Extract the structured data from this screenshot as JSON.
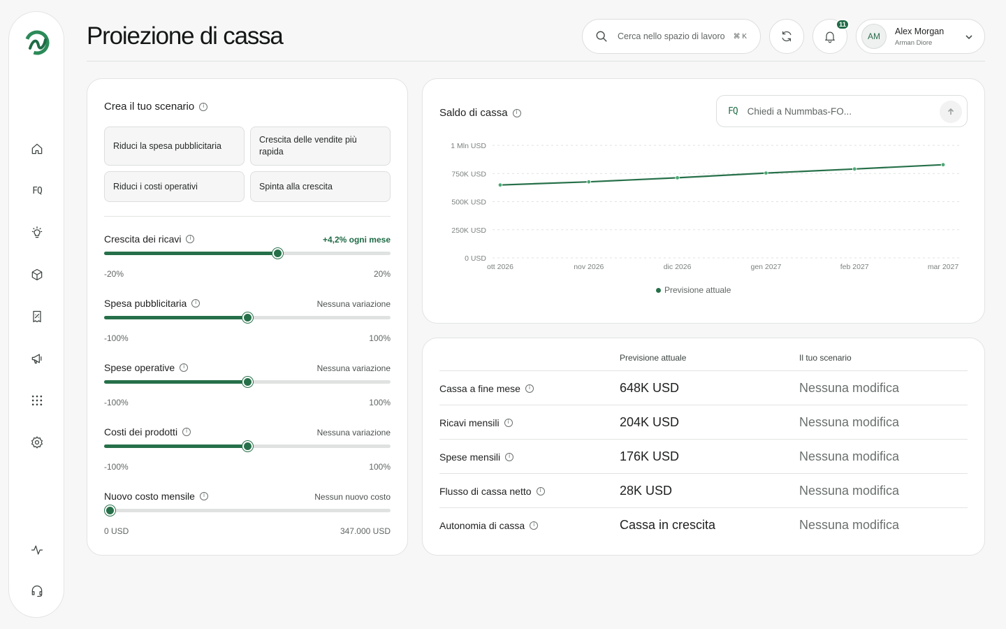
{
  "header": {
    "title": "Proiezione di cassa",
    "search_placeholder": "Cerca nello spazio di lavoro",
    "search_shortcut": "⌘ K",
    "notifications_count": "11",
    "user": {
      "initials": "AM",
      "name": "Alex Morgan",
      "org": "Arman Diore"
    }
  },
  "sidebar": {
    "items": [
      "home-icon",
      "fq-icon",
      "lightbulb-icon",
      "box-icon",
      "receipt-icon",
      "megaphone-icon",
      "apps-grid-icon",
      "settings-icon",
      "activity-icon",
      "headset-icon"
    ],
    "fq_glyph": "FQ"
  },
  "scenario": {
    "title": "Crea il tuo scenario",
    "presets": [
      "Riduci la spesa pubblicitaria",
      "Crescita delle vendite più rapida",
      "Riduci i costi operativi",
      "Spinta alla crescita"
    ],
    "sliders": [
      {
        "label": "Crescita dei ricavi",
        "value_text": "+4,2% ogni mese",
        "min_label": "-20%",
        "max_label": "20%",
        "position_pct": 60.5
      },
      {
        "label": "Spesa pubblicitaria",
        "value_text": "Nessuna variazione",
        "min_label": "-100%",
        "max_label": "100%",
        "position_pct": 50
      },
      {
        "label": "Spese operative",
        "value_text": "Nessuna variazione",
        "min_label": "-100%",
        "max_label": "100%",
        "position_pct": 50
      },
      {
        "label": "Costi dei prodotti",
        "value_text": "Nessuna variazione",
        "min_label": "-100%",
        "max_label": "100%",
        "position_pct": 50
      },
      {
        "label": "Nuovo costo mensile",
        "value_text": "Nessun nuovo costo",
        "min_label": "0 USD",
        "max_label": "347.000 USD",
        "position_pct": 2
      }
    ]
  },
  "cash_chart": {
    "title": "Saldo di cassa",
    "ask_placeholder": "Chiedi a Nummbas-FO...",
    "ask_icon_glyph": "FQ"
  },
  "chart_data": {
    "type": "line",
    "x": [
      "ott 2026",
      "nov 2026",
      "dic 2026",
      "gen 2027",
      "feb 2027",
      "mar 2027"
    ],
    "y_ticks": [
      "1 Mln USD",
      "750K USD",
      "500K USD",
      "250K USD",
      "0 USD"
    ],
    "y_tick_values": [
      1000000,
      750000,
      500000,
      250000,
      0
    ],
    "ylim": [
      0,
      1000000
    ],
    "series": [
      {
        "name": "Previsione attuale",
        "values": [
          648000,
          676000,
          712000,
          754000,
          790000,
          828000
        ],
        "color": "#267049"
      }
    ],
    "grid": true,
    "legend": "bottom"
  },
  "summary": {
    "col_current": "Previsione attuale",
    "col_scenario": "Il tuo scenario",
    "rows": [
      {
        "label": "Cassa a fine mese",
        "current": "648K USD",
        "scenario": "Nessuna modifica"
      },
      {
        "label": "Ricavi mensili",
        "current": "204K USD",
        "scenario": "Nessuna modifica"
      },
      {
        "label": "Spese mensili",
        "current": "176K USD",
        "scenario": "Nessuna modifica"
      },
      {
        "label": "Flusso di cassa netto",
        "current": "28K USD",
        "scenario": "Nessuna modifica"
      },
      {
        "label": "Autonomia di cassa",
        "current": "Cassa in crescita",
        "scenario": "Nessuna modifica"
      }
    ]
  },
  "colors": {
    "accent": "#267049",
    "background": "#f6f7f6"
  }
}
